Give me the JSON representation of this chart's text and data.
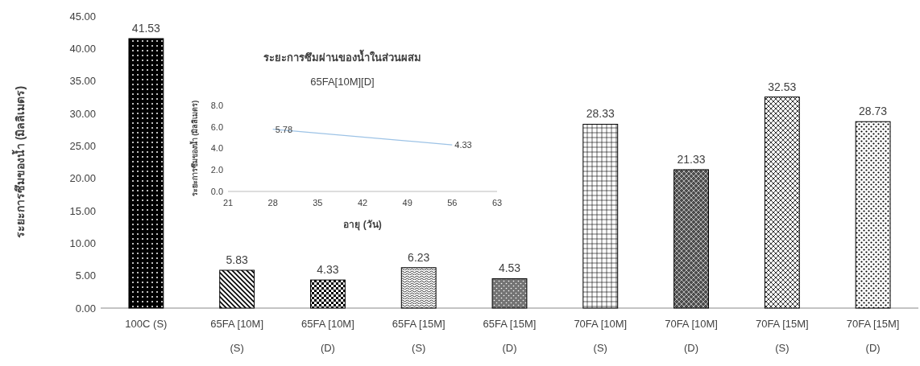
{
  "chart_data": [
    {
      "type": "bar",
      "ylabel": "ระยะการซึมของน้ำ (มิลลิเมตร)",
      "categories": [
        "100C (S)",
        "65FA [10M] (S)",
        "65FA [10M] (D)",
        "65FA [15M] (S)",
        "65FA [15M] (D)",
        "70FA [10M] (S)",
        "70FA [10M] (D)",
        "70FA [15M] (S)",
        "70FA [15M] (D)"
      ],
      "values": [
        41.53,
        5.83,
        4.33,
        6.23,
        4.53,
        28.33,
        21.33,
        32.53,
        28.73
      ],
      "colors": [
        "#000000",
        "#000000",
        "#000000",
        "#000000",
        "#000000",
        "#000000",
        "#000000",
        "#000000",
        "#000000"
      ],
      "ylim": [
        0,
        45
      ],
      "yticks": [
        {
          "value": 0,
          "label": "0.00"
        },
        {
          "value": 5,
          "label": "5.00"
        },
        {
          "value": 10,
          "label": "10.00"
        },
        {
          "value": 15,
          "label": "15.00"
        },
        {
          "value": 20,
          "label": "20.00"
        },
        {
          "value": 25,
          "label": "25.00"
        },
        {
          "value": 30,
          "label": "30.00"
        },
        {
          "value": 35,
          "label": "35.00"
        },
        {
          "value": 40,
          "label": "40.00"
        },
        {
          "value": 45,
          "label": "45.00"
        }
      ],
      "data_labels": true
    },
    {
      "type": "line",
      "title": "ระยะการซึมผ่านของน้ำในส่วนผสม",
      "subtitle": "65FA[10M][D]",
      "xlabel": "อายุ (วัน)",
      "ylabel": "ระยะการซึมของน้ำ (มิลลิเมตร)",
      "x": [
        28,
        56
      ],
      "series": [
        {
          "color": "#9dc3e6",
          "values": [
            5.78,
            4.33
          ]
        }
      ],
      "xlim": [
        21,
        63
      ],
      "xticks": [
        21,
        28,
        35,
        42,
        49,
        56,
        63
      ],
      "ylim": [
        0,
        8
      ],
      "yticks": [
        {
          "value": 0,
          "label": "0.0"
        },
        {
          "value": 2,
          "label": "2.0"
        },
        {
          "value": 4,
          "label": "4.0"
        },
        {
          "value": 6,
          "label": "6.0"
        },
        {
          "value": 8,
          "label": "8.0"
        }
      ],
      "data_labels": true
    }
  ]
}
